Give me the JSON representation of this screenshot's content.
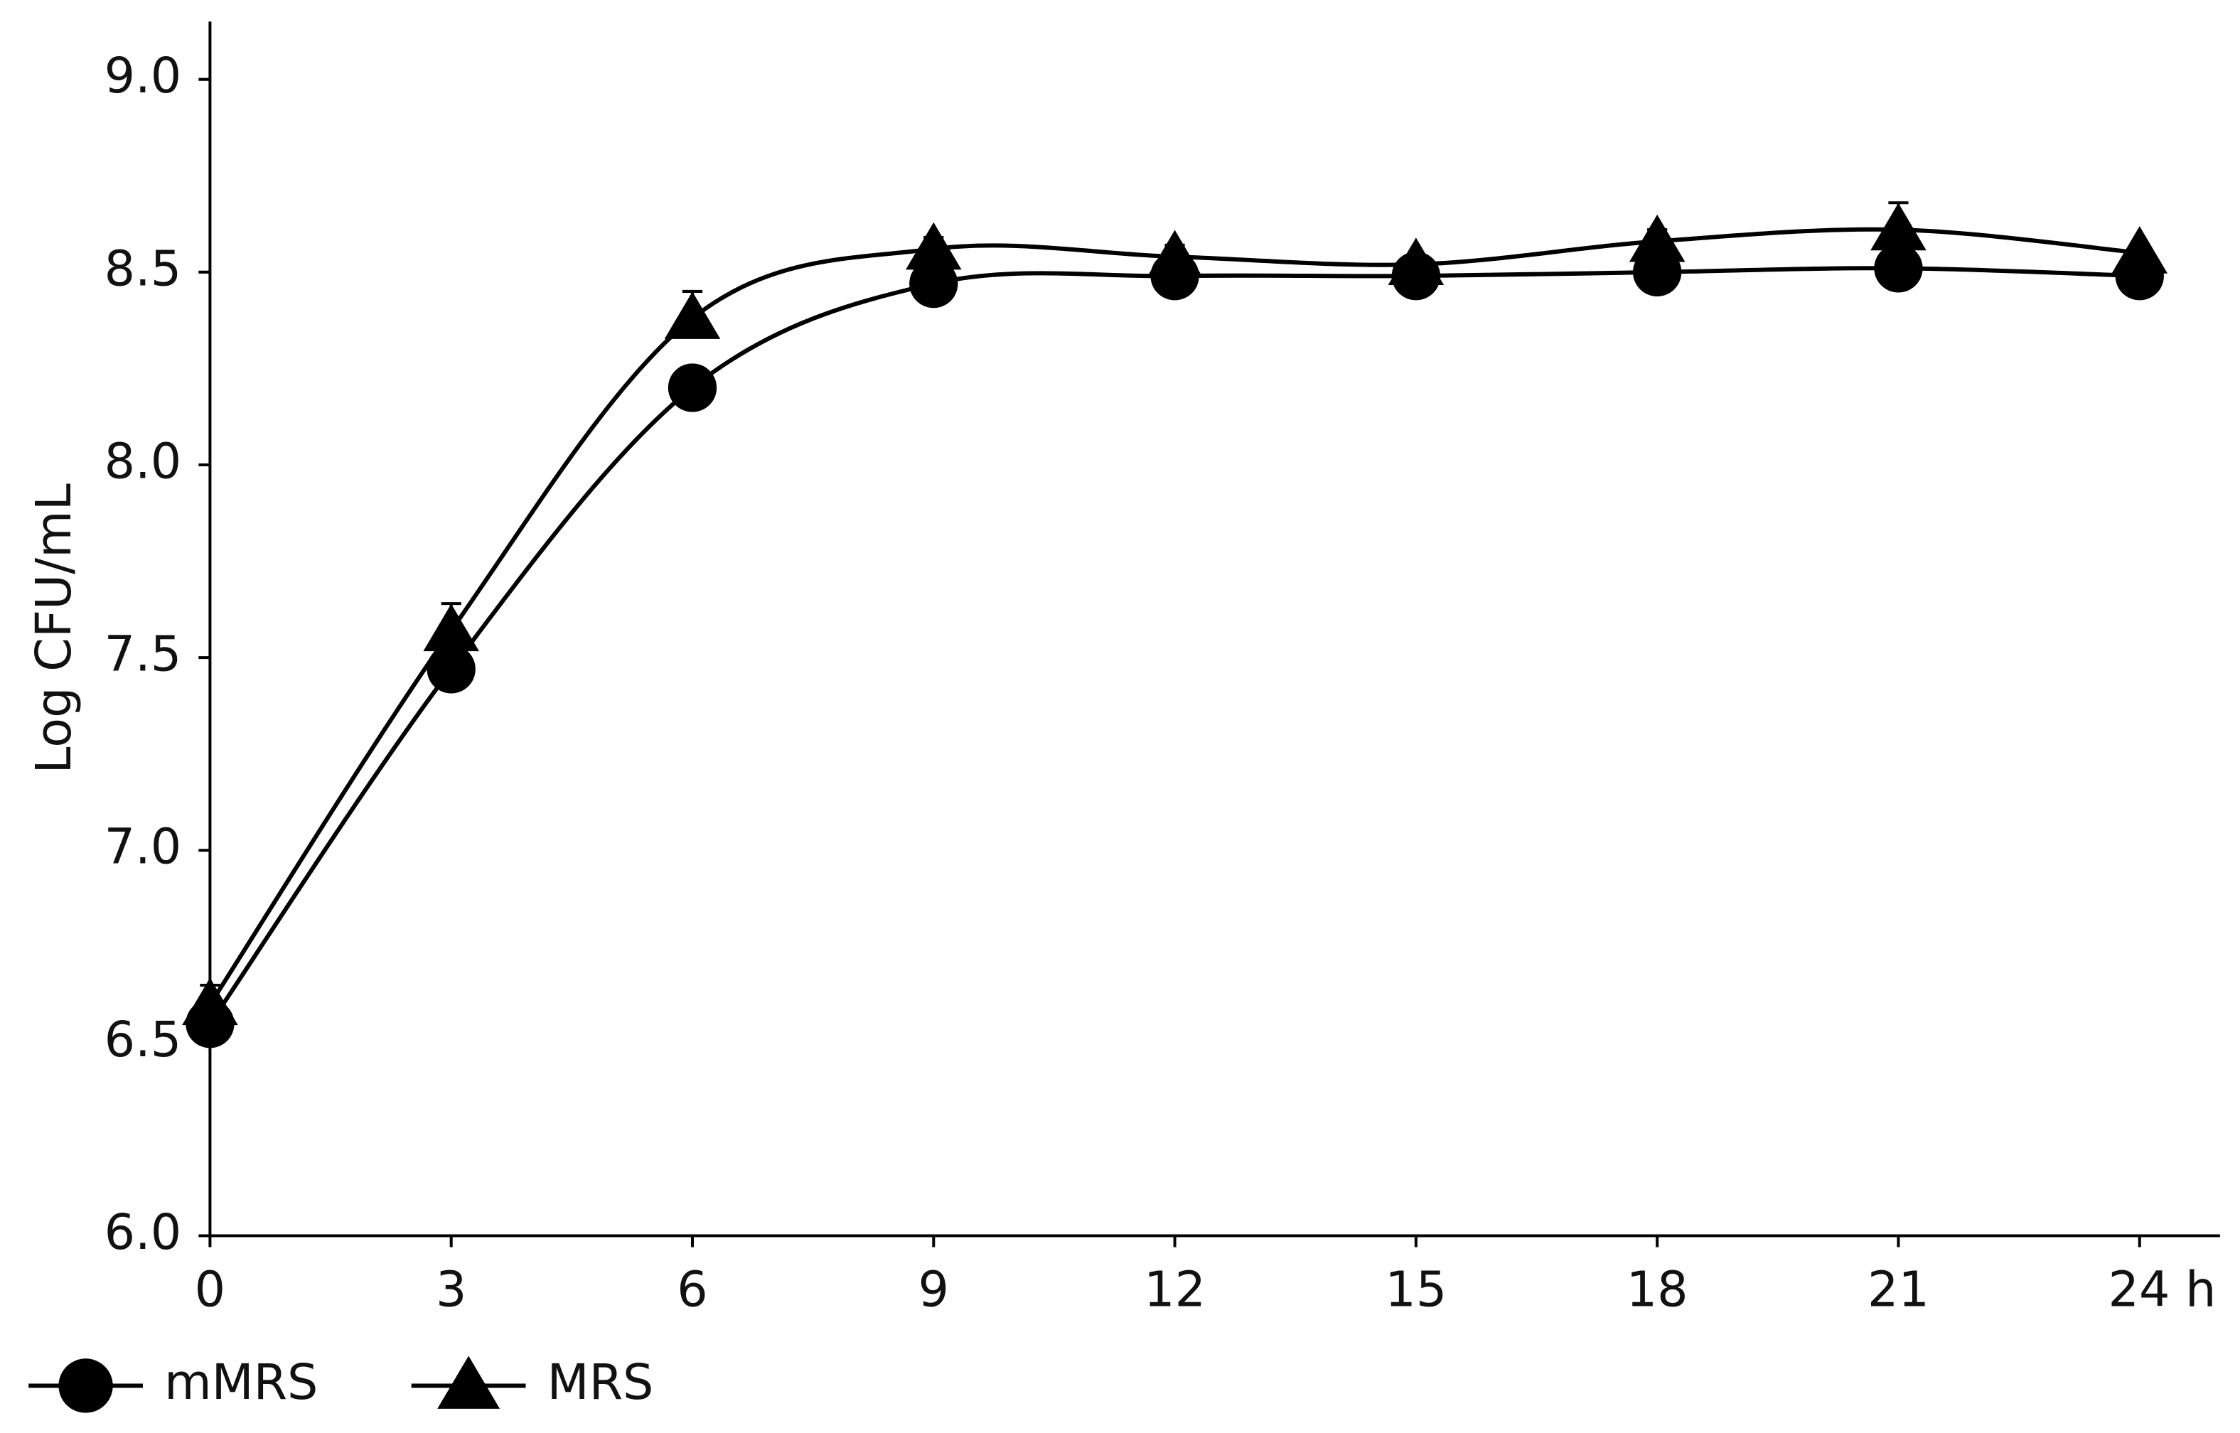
{
  "chart_data": {
    "type": "line",
    "y_label": "Log CFU/mL",
    "x": [
      0,
      3,
      6,
      9,
      12,
      15,
      18,
      21,
      24
    ],
    "series": [
      {
        "name": "mMRS",
        "color": "#000000",
        "marker": "circle",
        "values": [
          6.55,
          7.47,
          8.2,
          8.47,
          8.49,
          8.49,
          8.5,
          8.51,
          8.49
        ]
      },
      {
        "name": "MRS",
        "color": "#000000",
        "marker": "triangle",
        "values": [
          6.6,
          7.57,
          8.38,
          8.56,
          8.54,
          8.52,
          8.58,
          8.61,
          8.55
        ],
        "errors": [
          0.05,
          0.07,
          0.07,
          0.03,
          0.03,
          0.02,
          0.03,
          0.07,
          0.02
        ]
      }
    ],
    "xlim": [
      0,
      25
    ],
    "xticks": [
      0,
      3,
      6,
      9,
      12,
      15,
      18,
      21,
      {
        "value": 24,
        "label": "24 h"
      }
    ],
    "ylim": [
      6,
      9.15
    ],
    "yticks": [
      {
        "value": 6,
        "label": "6.0"
      },
      6.5,
      {
        "value": 7,
        "label": "7.0"
      },
      7.5,
      {
        "value": 8,
        "label": "8.0"
      },
      8.5,
      {
        "value": 9,
        "label": "9.0"
      }
    ],
    "grid": false,
    "legend": "bottom-left"
  }
}
